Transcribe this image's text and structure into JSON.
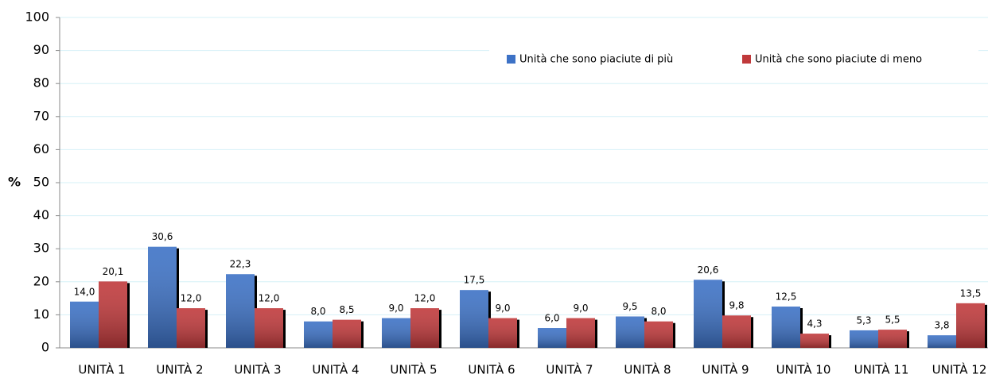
{
  "chart_data": {
    "type": "bar",
    "y_label": "%",
    "categories": [
      "UNITÀ 1",
      "UNITÀ 2",
      "UNITÀ 3",
      "UNITÀ 4",
      "UNITÀ 5",
      "UNITÀ 6",
      "UNITÀ 7",
      "UNITÀ 8",
      "UNITÀ 9",
      "UNITÀ 10",
      "UNITÀ 11",
      "UNITÀ 12"
    ],
    "series": [
      {
        "name": "Unità che sono piaciute di più",
        "color": "#3d72c6",
        "values": [
          14.0,
          30.6,
          22.3,
          8.0,
          9.0,
          17.5,
          6.0,
          9.5,
          20.6,
          12.5,
          5.3,
          3.8
        ],
        "value_labels": [
          "14,0",
          "30,6",
          "22,3",
          "8,0",
          "9,0",
          "17,5",
          "6,0",
          "9,5",
          "20,6",
          "12,5",
          "5,3",
          "3,8"
        ]
      },
      {
        "name": "Unità che sono piaciute di meno",
        "color": "#c0393b",
        "values": [
          20.1,
          12.0,
          12.0,
          8.5,
          12.0,
          9.0,
          9.0,
          8.0,
          9.8,
          4.3,
          5.5,
          13.5
        ],
        "value_labels": [
          "20,1",
          "12,0",
          "12,0",
          "8,5",
          "12,0",
          "9,0",
          "9,0",
          "8,0",
          "9,8",
          "4,3",
          "5,5",
          "13,5"
        ]
      }
    ],
    "ylim": [
      0,
      100
    ],
    "yticks": [
      0,
      10,
      20,
      30,
      40,
      50,
      60,
      70,
      80,
      90,
      100
    ],
    "grid": true,
    "legend": "top-right"
  }
}
